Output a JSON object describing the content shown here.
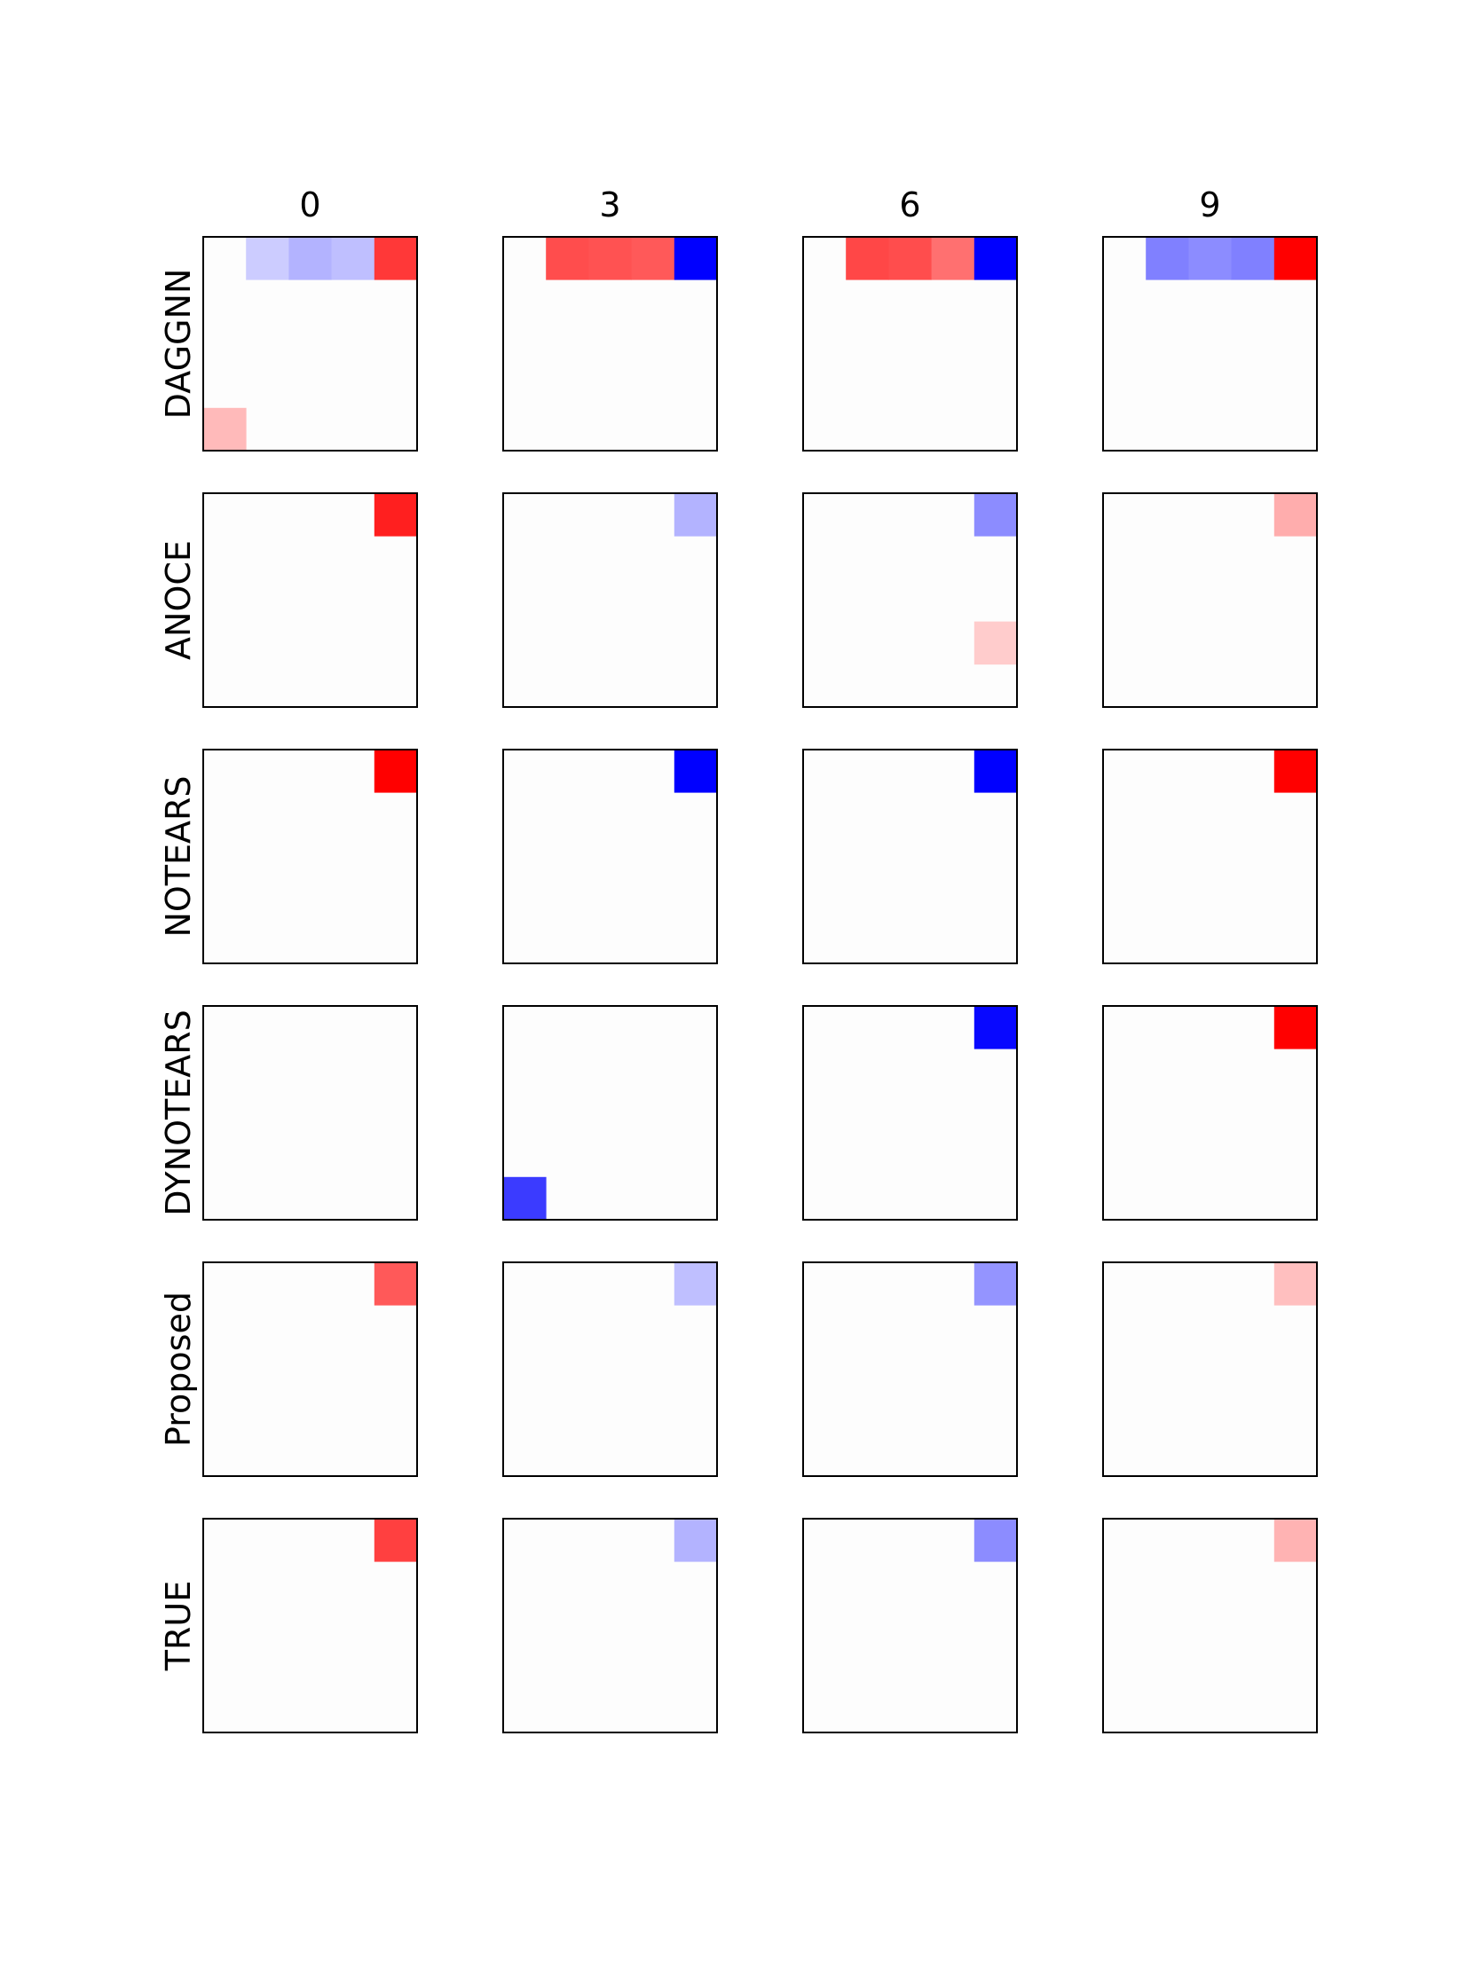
{
  "chart_data": {
    "type": "heatmap",
    "title": "",
    "col_labels": [
      "0",
      "3",
      "6",
      "9"
    ],
    "row_labels": [
      "DAGGNN",
      "ANOCE",
      "NOTEARS",
      "DYNOTEARS",
      "Proposed",
      "TRUE"
    ],
    "matrix_size": [
      5,
      5
    ],
    "colormap": "bwr",
    "value_range": [
      -1,
      1
    ],
    "axes_ticks": false,
    "panels": [
      [
        {
          "cells": [
            {
              "r": 0,
              "c": 1,
              "v": -0.2
            },
            {
              "r": 0,
              "c": 2,
              "v": -0.3
            },
            {
              "r": 0,
              "c": 3,
              "v": -0.25
            },
            {
              "r": 0,
              "c": 4,
              "v": 0.78
            },
            {
              "r": 4,
              "c": 0,
              "v": 0.27
            }
          ]
        },
        {
          "cells": [
            {
              "r": 0,
              "c": 1,
              "v": 0.7
            },
            {
              "r": 0,
              "c": 2,
              "v": 0.68
            },
            {
              "r": 0,
              "c": 3,
              "v": 0.65
            },
            {
              "r": 0,
              "c": 4,
              "v": -1.0
            }
          ]
        },
        {
          "cells": [
            {
              "r": 0,
              "c": 1,
              "v": 0.72
            },
            {
              "r": 0,
              "c": 2,
              "v": 0.7
            },
            {
              "r": 0,
              "c": 3,
              "v": 0.56
            },
            {
              "r": 0,
              "c": 4,
              "v": -1.0
            }
          ]
        },
        {
          "cells": [
            {
              "r": 0,
              "c": 1,
              "v": -0.5
            },
            {
              "r": 0,
              "c": 2,
              "v": -0.45
            },
            {
              "r": 0,
              "c": 3,
              "v": -0.5
            },
            {
              "r": 0,
              "c": 4,
              "v": 1.0
            }
          ]
        }
      ],
      [
        {
          "cells": [
            {
              "r": 0,
              "c": 4,
              "v": 0.88
            }
          ]
        },
        {
          "cells": [
            {
              "r": 0,
              "c": 4,
              "v": -0.3
            }
          ]
        },
        {
          "cells": [
            {
              "r": 0,
              "c": 4,
              "v": -0.45
            },
            {
              "r": 3,
              "c": 4,
              "v": 0.2
            }
          ]
        },
        {
          "cells": [
            {
              "r": 0,
              "c": 4,
              "v": 0.32
            }
          ]
        }
      ],
      [
        {
          "cells": [
            {
              "r": 0,
              "c": 4,
              "v": 1.0
            }
          ]
        },
        {
          "cells": [
            {
              "r": 0,
              "c": 4,
              "v": -1.0
            }
          ]
        },
        {
          "cells": [
            {
              "r": 0,
              "c": 4,
              "v": -1.0
            }
          ]
        },
        {
          "cells": [
            {
              "r": 0,
              "c": 4,
              "v": 1.0
            }
          ]
        }
      ],
      [
        {
          "cells": []
        },
        {
          "cells": [
            {
              "r": 4,
              "c": 0,
              "v": -0.77
            }
          ]
        },
        {
          "cells": [
            {
              "r": 0,
              "c": 4,
              "v": -0.97
            }
          ]
        },
        {
          "cells": [
            {
              "r": 0,
              "c": 4,
              "v": 1.0
            }
          ]
        }
      ],
      [
        {
          "cells": [
            {
              "r": 0,
              "c": 4,
              "v": 0.65
            }
          ]
        },
        {
          "cells": [
            {
              "r": 0,
              "c": 4,
              "v": -0.25
            }
          ]
        },
        {
          "cells": [
            {
              "r": 0,
              "c": 4,
              "v": -0.42
            }
          ]
        },
        {
          "cells": [
            {
              "r": 0,
              "c": 4,
              "v": 0.25
            }
          ]
        }
      ],
      [
        {
          "cells": [
            {
              "r": 0,
              "c": 4,
              "v": 0.75
            }
          ]
        },
        {
          "cells": [
            {
              "r": 0,
              "c": 4,
              "v": -0.3
            }
          ]
        },
        {
          "cells": [
            {
              "r": 0,
              "c": 4,
              "v": -0.45
            }
          ]
        },
        {
          "cells": [
            {
              "r": 0,
              "c": 4,
              "v": 0.3
            }
          ]
        }
      ]
    ]
  }
}
